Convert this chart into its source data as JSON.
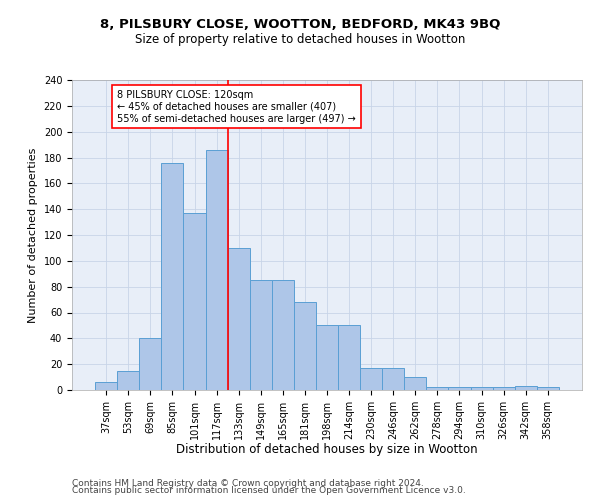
{
  "title1": "8, PILSBURY CLOSE, WOOTTON, BEDFORD, MK43 9BQ",
  "title2": "Size of property relative to detached houses in Wootton",
  "xlabel": "Distribution of detached houses by size in Wootton",
  "ylabel": "Number of detached properties",
  "bar_labels": [
    "37sqm",
    "53sqm",
    "69sqm",
    "85sqm",
    "101sqm",
    "117sqm",
    "133sqm",
    "149sqm",
    "165sqm",
    "181sqm",
    "198sqm",
    "214sqm",
    "230sqm",
    "246sqm",
    "262sqm",
    "278sqm",
    "294sqm",
    "310sqm",
    "326sqm",
    "342sqm",
    "358sqm"
  ],
  "bar_heights": [
    6,
    15,
    40,
    176,
    137,
    186,
    110,
    85,
    85,
    68,
    50,
    50,
    17,
    17,
    10,
    2,
    2,
    2,
    2,
    3,
    2
  ],
  "bar_color": "#aec6e8",
  "bar_edge_color": "#5a9fd4",
  "vline_x": 5.5,
  "vline_color": "red",
  "annotation_text": "8 PILSBURY CLOSE: 120sqm\n← 45% of detached houses are smaller (407)\n55% of semi-detached houses are larger (497) →",
  "annotation_box_color": "white",
  "annotation_box_edge_color": "red",
  "ylim": [
    0,
    240
  ],
  "yticks": [
    0,
    20,
    40,
    60,
    80,
    100,
    120,
    140,
    160,
    180,
    200,
    220,
    240
  ],
  "grid_color": "#c8d4e8",
  "background_color": "#e8eef8",
  "footer1": "Contains HM Land Registry data © Crown copyright and database right 2024.",
  "footer2": "Contains public sector information licensed under the Open Government Licence v3.0.",
  "title1_fontsize": 9.5,
  "title2_fontsize": 8.5,
  "xlabel_fontsize": 8.5,
  "ylabel_fontsize": 8,
  "tick_fontsize": 7,
  "annotation_fontsize": 7,
  "footer_fontsize": 6.5
}
